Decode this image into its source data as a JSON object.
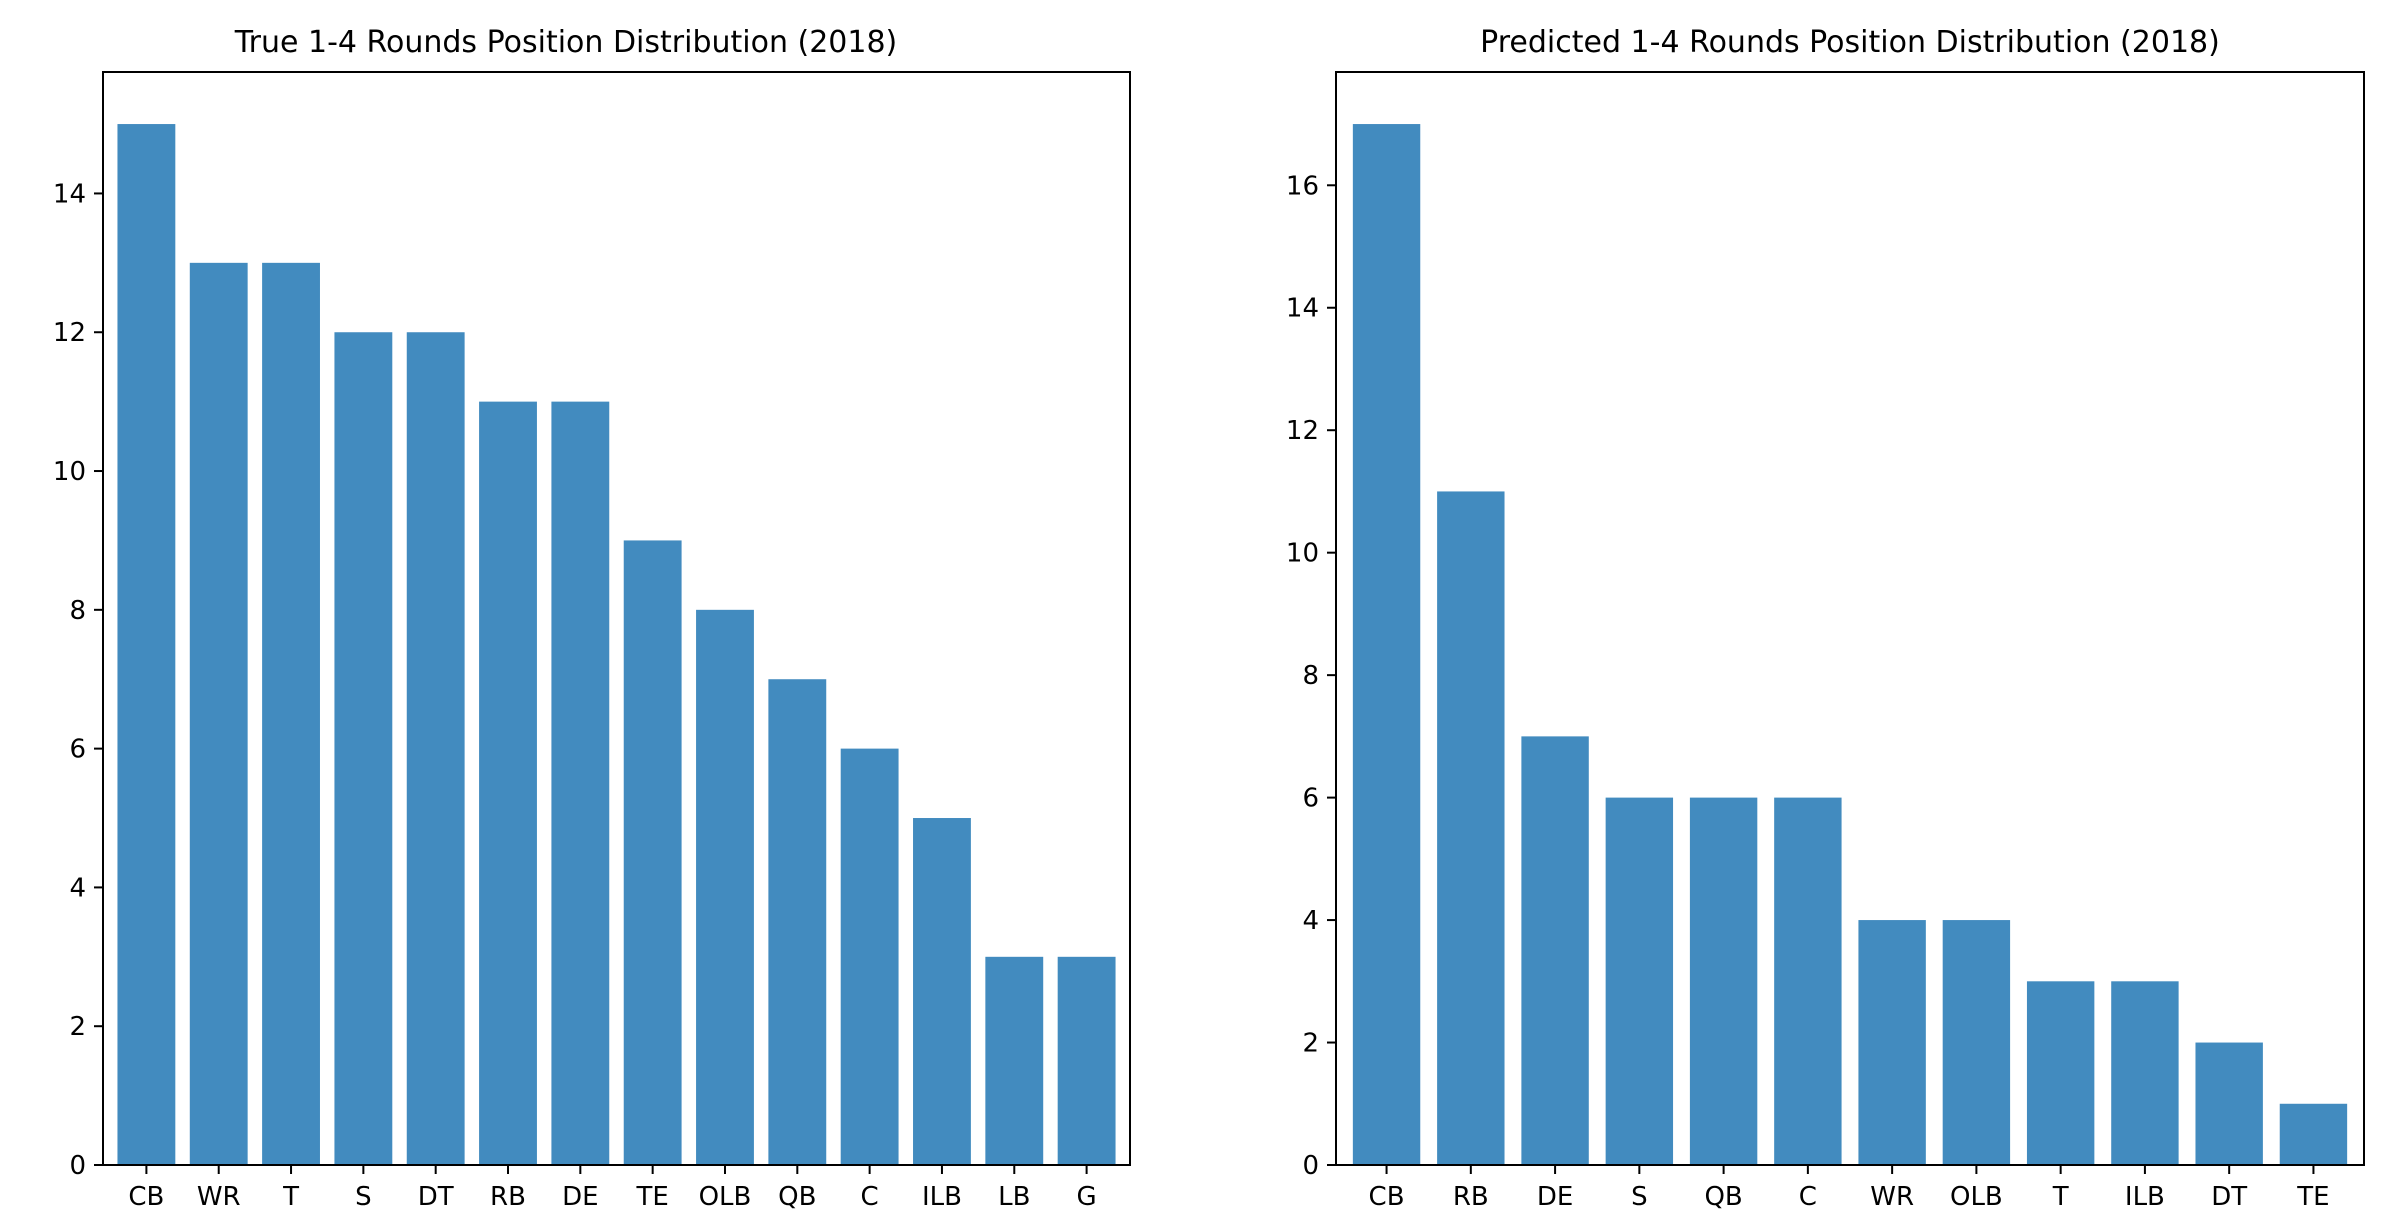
{
  "chart_data": [
    {
      "type": "bar",
      "title": "True 1-4 Rounds Position Distribution (2018)",
      "xlabel": "",
      "ylabel": "",
      "categories": [
        "CB",
        "WR",
        "T",
        "S",
        "DT",
        "RB",
        "DE",
        "TE",
        "OLB",
        "QB",
        "C",
        "ILB",
        "LB",
        "G"
      ],
      "values": [
        15,
        13,
        13,
        12,
        12,
        11,
        11,
        9,
        8,
        7,
        6,
        5,
        3,
        3
      ],
      "ylim": [
        0,
        15.75
      ],
      "yticks": [
        0,
        2,
        4,
        6,
        8,
        10,
        12,
        14
      ],
      "bar_color": "#428bbf",
      "grid": false,
      "legend": "none"
    },
    {
      "type": "bar",
      "title": "Predicted 1-4 Rounds Position Distribution (2018)",
      "xlabel": "",
      "ylabel": "",
      "categories": [
        "CB",
        "RB",
        "DE",
        "S",
        "QB",
        "C",
        "WR",
        "OLB",
        "T",
        "ILB",
        "DT",
        "TE"
      ],
      "values": [
        17,
        11,
        7,
        6,
        6,
        6,
        4,
        4,
        3,
        3,
        2,
        1
      ],
      "ylim": [
        0,
        17.85
      ],
      "yticks": [
        0,
        2,
        4,
        6,
        8,
        10,
        12,
        14,
        16
      ],
      "bar_color": "#428bbf",
      "grid": false,
      "legend": "none"
    }
  ]
}
